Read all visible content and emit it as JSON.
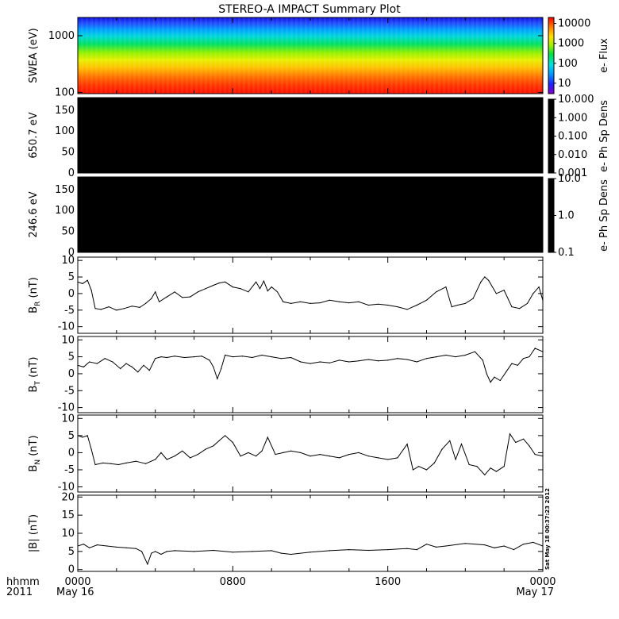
{
  "title": "STEREO-A IMPACT Summary Plot",
  "stamp": "Sat May 18 00:37:23 2012",
  "x_axis": {
    "ticks": [
      "0000",
      "0800",
      "1600",
      "0000"
    ],
    "tick_values": [
      0,
      8,
      16,
      24
    ],
    "date_labels": [
      "May 16",
      "May 17"
    ],
    "corner_labels": [
      "hhmm",
      "2011"
    ],
    "range": [
      0,
      24
    ]
  },
  "chart_data": [
    {
      "type": "heatmap",
      "panel": "swea",
      "ylabel": "SWEA (eV)",
      "y_scale": "log",
      "ylim": [
        95,
        2100
      ],
      "yticks": [
        {
          "value": 100,
          "label": "100"
        },
        {
          "value": 1000,
          "label": "1000"
        }
      ],
      "colorbar": {
        "label": "e- Flux",
        "scale": "log",
        "range": [
          3,
          20000
        ],
        "ticks": [
          {
            "value": 10,
            "label": "10"
          },
          {
            "value": 100,
            "label": "100"
          },
          {
            "value": 1000,
            "label": "1000"
          },
          {
            "value": 10000,
            "label": "10000"
          }
        ]
      }
    },
    {
      "type": "heatmap",
      "panel": "pad1",
      "ylabel": "650.7 eV",
      "ylim": [
        0,
        180
      ],
      "yticks": [
        {
          "value": 0,
          "label": "0"
        },
        {
          "value": 50,
          "label": "50"
        },
        {
          "value": 100,
          "label": "100"
        },
        {
          "value": 150,
          "label": "150"
        }
      ],
      "fill": "#000000",
      "colorbar": {
        "label": "e- Ph Sp Dens",
        "scale": "log",
        "range": [
          0.001,
          10
        ],
        "ticks": [
          {
            "value": 0.001,
            "label": "0.001"
          },
          {
            "value": 0.01,
            "label": "0.010"
          },
          {
            "value": 0.1,
            "label": "0.100"
          },
          {
            "value": 1,
            "label": "1.000"
          },
          {
            "value": 10,
            "label": "10.000"
          }
        ]
      }
    },
    {
      "type": "heatmap",
      "panel": "pad2",
      "ylabel": "246.6 eV",
      "ylim": [
        0,
        180
      ],
      "yticks": [
        {
          "value": 0,
          "label": "0"
        },
        {
          "value": 50,
          "label": "50"
        },
        {
          "value": 100,
          "label": "100"
        },
        {
          "value": 150,
          "label": "150"
        }
      ],
      "fill": "#000000",
      "colorbar": {
        "label": "e- Ph Sp Dens",
        "scale": "log",
        "range": [
          0.1,
          10
        ],
        "ticks": [
          {
            "value": 0.1,
            "label": "0.1"
          },
          {
            "value": 1,
            "label": "1.0"
          },
          {
            "value": 10,
            "label": "10.0"
          }
        ]
      }
    },
    {
      "type": "line",
      "panel": "br",
      "ylabel_main": "B",
      "ylabel_sub": "R",
      "ylabel_unit": "(nT)",
      "ylim": [
        -12,
        11
      ],
      "yticks": [
        {
          "value": -10,
          "label": "-10"
        },
        {
          "value": -5,
          "label": "-5"
        },
        {
          "value": 0,
          "label": "0"
        },
        {
          "value": 5,
          "label": "5"
        },
        {
          "value": 10,
          "label": "10"
        }
      ],
      "x": [
        0,
        0.25,
        0.5,
        0.7,
        0.9,
        1.2,
        1.6,
        2.0,
        2.4,
        2.8,
        3.2,
        3.5,
        3.8,
        4.0,
        4.2,
        4.6,
        5.0,
        5.4,
        5.8,
        6.2,
        6.6,
        7.0,
        7.3,
        7.6,
        8.0,
        8.4,
        8.8,
        9.2,
        9.4,
        9.6,
        9.8,
        10.0,
        10.3,
        10.6,
        11.0,
        11.5,
        12.0,
        12.5,
        13.0,
        13.5,
        14.0,
        14.5,
        15.0,
        15.5,
        16.0,
        16.5,
        17.0,
        17.5,
        18.0,
        18.5,
        19.0,
        19.3,
        19.6,
        20.0,
        20.4,
        20.8,
        21.0,
        21.2,
        21.6,
        22.0,
        22.4,
        22.8,
        23.2,
        23.5,
        23.8,
        24.0
      ],
      "y": [
        3.5,
        3.0,
        4.0,
        1.0,
        -4.5,
        -4.8,
        -4.0,
        -5.0,
        -4.5,
        -3.8,
        -4.2,
        -3.0,
        -1.5,
        0.5,
        -2.5,
        -1.0,
        0.5,
        -1.2,
        -1.0,
        0.5,
        1.5,
        2.5,
        3.2,
        3.5,
        2.0,
        1.5,
        0.5,
        3.5,
        1.5,
        3.8,
        0.8,
        2.0,
        0.5,
        -2.5,
        -3.0,
        -2.5,
        -3.0,
        -2.8,
        -2.0,
        -2.5,
        -2.8,
        -2.5,
        -3.5,
        -3.2,
        -3.5,
        -4.0,
        -4.8,
        -3.5,
        -2.0,
        0.5,
        2.0,
        -4.0,
        -3.5,
        -3.0,
        -1.5,
        3.5,
        5.0,
        4.0,
        0.0,
        1.0,
        -4.0,
        -4.5,
        -3.0,
        0.0,
        2.0,
        -2.0
      ]
    },
    {
      "type": "line",
      "panel": "bt",
      "ylabel_main": "B",
      "ylabel_sub": "T",
      "ylabel_unit": "(nT)",
      "ylim": [
        -11.5,
        11
      ],
      "yticks": [
        {
          "value": -10,
          "label": "-10"
        },
        {
          "value": -5,
          "label": "-5"
        },
        {
          "value": 0,
          "label": "0"
        },
        {
          "value": 5,
          "label": "5"
        },
        {
          "value": 10,
          "label": "10"
        }
      ],
      "x": [
        0,
        0.3,
        0.6,
        1.0,
        1.4,
        1.8,
        2.2,
        2.5,
        2.8,
        3.1,
        3.4,
        3.7,
        4.0,
        4.3,
        4.6,
        5.0,
        5.5,
        6.0,
        6.4,
        6.8,
        7.0,
        7.2,
        7.4,
        7.6,
        8.0,
        8.5,
        9.0,
        9.5,
        10.0,
        10.5,
        11.0,
        11.5,
        12.0,
        12.5,
        13.0,
        13.5,
        14.0,
        14.5,
        15.0,
        15.5,
        16.0,
        16.5,
        17.0,
        17.5,
        18.0,
        18.5,
        19.0,
        19.5,
        20.0,
        20.5,
        20.9,
        21.1,
        21.3,
        21.5,
        21.8,
        22.1,
        22.4,
        22.7,
        23.0,
        23.3,
        23.6,
        24.0
      ],
      "y": [
        2.5,
        2.0,
        3.5,
        3.0,
        4.5,
        3.5,
        1.5,
        3.0,
        2.0,
        0.5,
        2.5,
        1.0,
        4.5,
        5.0,
        4.8,
        5.2,
        4.8,
        5.0,
        5.2,
        4.0,
        2.0,
        -1.5,
        1.5,
        5.5,
        5.0,
        5.2,
        4.8,
        5.5,
        5.0,
        4.5,
        4.8,
        3.5,
        3.0,
        3.5,
        3.2,
        4.0,
        3.5,
        3.8,
        4.2,
        3.8,
        4.0,
        4.5,
        4.2,
        3.5,
        4.5,
        5.0,
        5.5,
        5.0,
        5.5,
        6.5,
        4.0,
        0.0,
        -2.5,
        -1.0,
        -2.0,
        0.5,
        3.0,
        2.5,
        4.5,
        5.0,
        7.5,
        6.5
      ]
    },
    {
      "type": "line",
      "panel": "bn",
      "ylabel_main": "B",
      "ylabel_sub": "N",
      "ylabel_unit": "(nT)",
      "ylim": [
        -11.5,
        11
      ],
      "yticks": [
        {
          "value": -10,
          "label": "-10"
        },
        {
          "value": -5,
          "label": "-5"
        },
        {
          "value": 0,
          "label": "0"
        },
        {
          "value": 5,
          "label": "5"
        },
        {
          "value": 10,
          "label": "10"
        }
      ],
      "x": [
        0,
        0.25,
        0.5,
        0.7,
        0.9,
        1.3,
        1.7,
        2.1,
        2.5,
        3.0,
        3.5,
        4.0,
        4.3,
        4.6,
        5.0,
        5.4,
        5.8,
        6.2,
        6.6,
        7.0,
        7.3,
        7.6,
        8.0,
        8.4,
        8.8,
        9.2,
        9.5,
        9.8,
        10.2,
        10.6,
        11.0,
        11.5,
        12.0,
        12.5,
        13.0,
        13.5,
        14.0,
        14.5,
        15.0,
        15.5,
        16.0,
        16.5,
        17.0,
        17.3,
        17.6,
        18.0,
        18.4,
        18.8,
        19.2,
        19.5,
        19.8,
        20.2,
        20.6,
        21.0,
        21.3,
        21.6,
        22.0,
        22.3,
        22.6,
        23.0,
        23.3,
        23.6,
        24.0
      ],
      "y": [
        5.0,
        4.5,
        5.0,
        1.0,
        -3.5,
        -3.0,
        -3.2,
        -3.5,
        -3.0,
        -2.5,
        -3.2,
        -2.0,
        0.0,
        -2.0,
        -1.0,
        0.5,
        -1.5,
        -0.5,
        1.0,
        2.0,
        3.5,
        5.0,
        3.0,
        -1.0,
        0.0,
        -1.0,
        0.5,
        4.5,
        -0.5,
        0.0,
        0.5,
        0.0,
        -1.0,
        -0.5,
        -1.0,
        -1.5,
        -0.5,
        0.0,
        -1.0,
        -1.5,
        -2.0,
        -1.5,
        2.5,
        -5.0,
        -4.0,
        -5.0,
        -3.0,
        1.0,
        3.5,
        -2.0,
        2.5,
        -3.5,
        -4.0,
        -6.5,
        -4.5,
        -5.5,
        -4.0,
        5.5,
        3.0,
        4.0,
        2.0,
        -0.5,
        -1.0
      ]
    },
    {
      "type": "line",
      "panel": "bmag",
      "ylabel_main": "|B|",
      "ylabel_unit": "(nT)",
      "ylim": [
        -0.5,
        20.5
      ],
      "yticks": [
        {
          "value": 0,
          "label": "0"
        },
        {
          "value": 5,
          "label": "5"
        },
        {
          "value": 10,
          "label": "10"
        },
        {
          "value": 15,
          "label": "15"
        },
        {
          "value": 20,
          "label": "20"
        }
      ],
      "x": [
        0,
        0.3,
        0.6,
        1.0,
        1.5,
        2.0,
        2.5,
        3.0,
        3.3,
        3.6,
        3.8,
        4.0,
        4.3,
        4.6,
        5.0,
        6.0,
        7.0,
        8.0,
        9.0,
        10.0,
        10.5,
        11.0,
        12.0,
        13.0,
        14.0,
        15.0,
        16.0,
        17.0,
        17.5,
        18.0,
        18.5,
        19.0,
        20.0,
        21.0,
        21.5,
        22.0,
        22.5,
        23.0,
        23.5,
        24.0
      ],
      "y": [
        6.5,
        7.0,
        6.0,
        6.8,
        6.5,
        6.2,
        6.0,
        5.8,
        5.0,
        1.5,
        4.5,
        5.0,
        4.2,
        5.0,
        5.2,
        5.0,
        5.3,
        4.8,
        5.0,
        5.2,
        4.5,
        4.2,
        4.8,
        5.2,
        5.5,
        5.3,
        5.5,
        5.8,
        5.5,
        7.0,
        6.2,
        6.5,
        7.2,
        6.8,
        6.0,
        6.5,
        5.5,
        7.0,
        7.5,
        6.5
      ]
    }
  ]
}
